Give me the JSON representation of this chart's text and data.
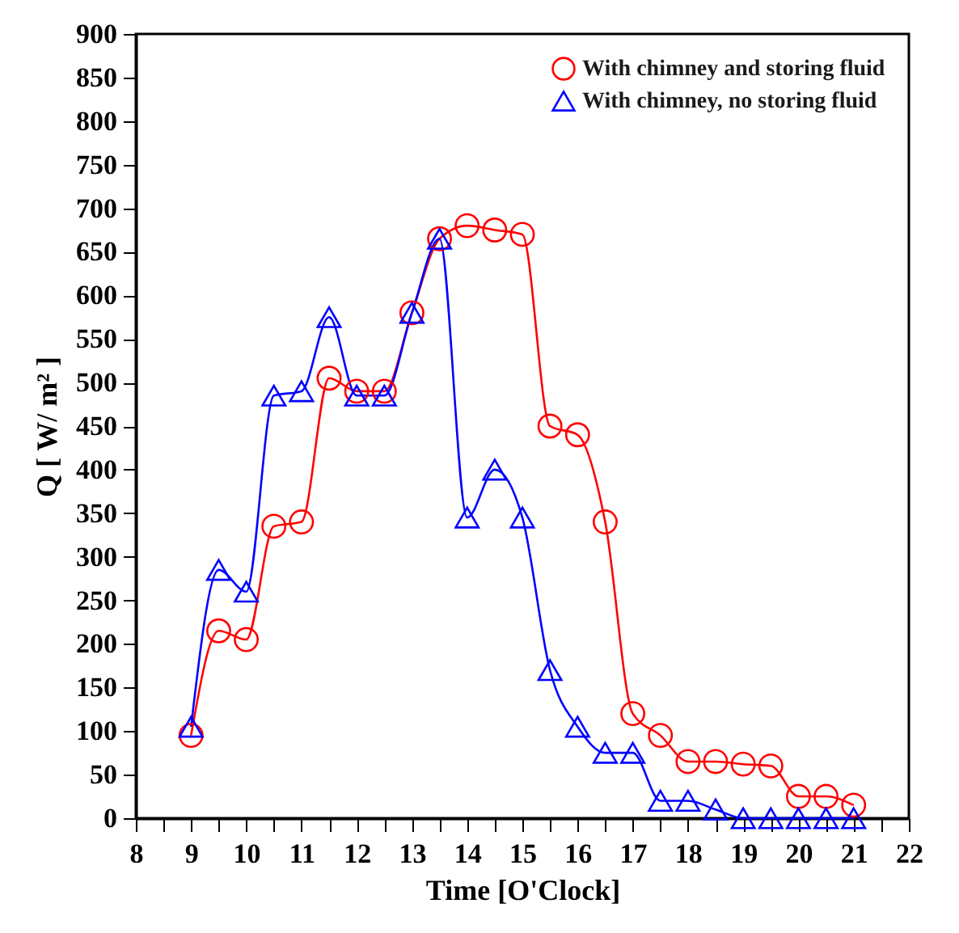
{
  "chart_data": {
    "type": "line",
    "xlabel": "Time [O'Clock]",
    "ylabel": "Q [ W/ m² ]",
    "x": [
      9,
      9.5,
      10,
      10.5,
      11,
      11.5,
      12,
      12.5,
      13,
      13.5,
      14,
      14.5,
      15,
      15.5,
      16,
      16.5,
      17,
      17.5,
      18,
      18.5,
      19,
      19.5,
      20,
      20.5,
      21
    ],
    "series": [
      {
        "name": "With chimney and storing fluid",
        "color": "#ff0000",
        "marker": "circle",
        "values": [
          95,
          215,
          205,
          335,
          340,
          505,
          490,
          490,
          580,
          665,
          680,
          675,
          670,
          450,
          440,
          340,
          120,
          95,
          65,
          65,
          62,
          60,
          25,
          25,
          15
        ]
      },
      {
        "name": "With chimney, no storing fluid",
        "color": "#0000ff",
        "marker": "triangle",
        "values": [
          105,
          285,
          260,
          485,
          490,
          575,
          485,
          485,
          580,
          665,
          345,
          400,
          345,
          170,
          105,
          75,
          75,
          20,
          20,
          10,
          0,
          0,
          0,
          0,
          0
        ]
      }
    ],
    "xlim": [
      8,
      22
    ],
    "xticks": [
      8,
      {
        "value": 8.5,
        "label": null
      },
      9,
      {
        "value": 9.5,
        "label": null
      },
      10,
      {
        "value": 10.5,
        "label": null
      },
      11,
      {
        "value": 11.5,
        "label": null
      },
      12,
      {
        "value": 12.5,
        "label": null
      },
      13,
      {
        "value": 13.5,
        "label": null
      },
      14,
      {
        "value": 14.5,
        "label": null
      },
      15,
      {
        "value": 15.5,
        "label": null
      },
      16,
      {
        "value": 16.5,
        "label": null
      },
      17,
      {
        "value": 17.5,
        "label": null
      },
      18,
      {
        "value": 18.5,
        "label": null
      },
      19,
      {
        "value": 19.5,
        "label": null
      },
      20,
      {
        "value": 20.5,
        "label": null
      },
      21,
      {
        "value": 21.5,
        "label": null
      },
      22
    ],
    "ylim": [
      0,
      900
    ],
    "yticks": [
      0,
      50,
      100,
      150,
      200,
      250,
      300,
      350,
      400,
      450,
      500,
      550,
      600,
      650,
      700,
      750,
      800,
      850,
      900
    ],
    "legend": "top right",
    "grid": false
  }
}
